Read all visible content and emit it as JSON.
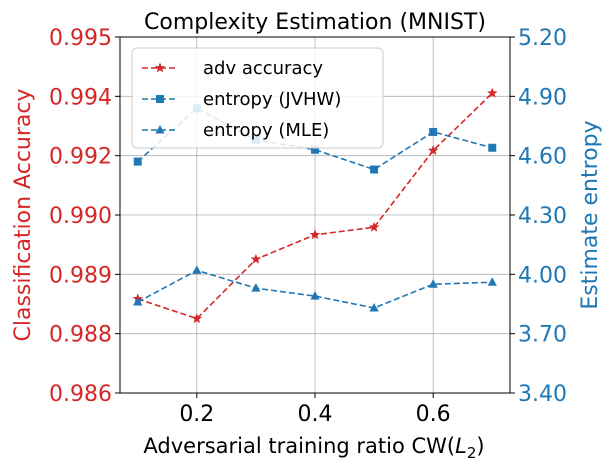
{
  "chart_data": {
    "type": "line",
    "title": "Complexity Estimation (MNIST)",
    "xlabel_prefix": "Adversarial training ratio CW(",
    "xlabel_sub_var": "L",
    "xlabel_sub_index": "2",
    "xlabel_suffix": ")",
    "ylabel_left": "Classification Accuracy",
    "ylabel_right": "Estimate entropy",
    "x": [
      0.1,
      0.2,
      0.3,
      0.4,
      0.5,
      0.6,
      0.7
    ],
    "xlim": [
      0.07,
      0.73
    ],
    "xticks": [
      0.2,
      0.4,
      0.6
    ],
    "xtick_labels": [
      "0.2",
      "0.4",
      "0.6"
    ],
    "left_axis": {
      "ylim": [
        0.986,
        0.995
      ],
      "tick_values": [
        0.986,
        0.9875,
        0.989,
        0.9905,
        0.992,
        0.9935,
        0.995
      ],
      "tick_labels": [
        "0.986",
        "0.988",
        "0.989",
        "0.990",
        "0.992",
        "0.994",
        "0.995"
      ],
      "color": "#d62728"
    },
    "right_axis": {
      "ylim": [
        3.4,
        5.2
      ],
      "tick_values": [
        3.4,
        3.7,
        4.0,
        4.3,
        4.6,
        4.9,
        5.2
      ],
      "tick_labels": [
        "3.40",
        "3.70",
        "4.00",
        "4.30",
        "4.60",
        "4.90",
        "5.20"
      ],
      "color": "#1f77b4"
    },
    "grid": true,
    "legend_position": "upper-left",
    "series": [
      {
        "name": "adv accuracy",
        "axis": "left",
        "color": "#d62728",
        "marker": "star",
        "values": [
          0.98838,
          0.98788,
          0.98938,
          0.99,
          0.99019,
          0.99213,
          0.99358
        ]
      },
      {
        "name": "entropy (JVHW)",
        "axis": "right",
        "color": "#1f77b4",
        "marker": "square",
        "values": [
          4.57,
          4.84,
          4.68,
          4.63,
          4.53,
          4.72,
          4.64
        ]
      },
      {
        "name": "entropy (MLE)",
        "axis": "right",
        "color": "#1f77b4",
        "marker": "triangle",
        "values": [
          3.86,
          4.02,
          3.93,
          3.89,
          3.83,
          3.95,
          3.96
        ]
      }
    ]
  }
}
